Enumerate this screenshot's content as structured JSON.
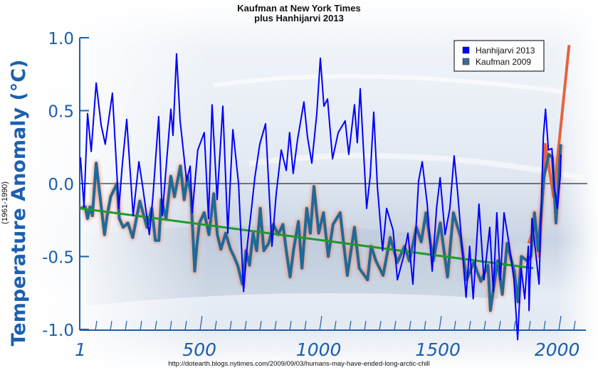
{
  "chart_data": {
    "type": "line",
    "title": "Kaufman at New York Times",
    "subtitle": "plus Hanhijarvi 2013",
    "xlabel": "",
    "ylabel": "Temperature Anomaly (°C)",
    "ylabel_sub": "(1961-1990)",
    "source_note": "http://dotearth.blogs.nytimes.com/2009/09/03/humans-may-have-ended-long-arctic-chill",
    "xlim": [
      1,
      2120
    ],
    "ylim": [
      -1.0,
      1.0
    ],
    "x_tick_labels": [
      "1",
      "500",
      "1000",
      "1500",
      "2000"
    ],
    "x_tick_values": [
      1,
      500,
      1000,
      1500,
      2000
    ],
    "y_tick_labels": [
      "1.0",
      "0.5",
      "0.0",
      "-0.5",
      "-1.0"
    ],
    "y_tick_values": [
      1.0,
      0.5,
      0.0,
      -0.5,
      -1.0
    ],
    "legend_position": "top-right",
    "reference_line": 0.0,
    "series": [
      {
        "name": "Hanhijarvi 2013",
        "color": "#0000ff",
        "x": [
          1,
          16,
          31,
          46,
          67,
          88,
          105,
          135,
          162,
          177,
          195,
          222,
          246,
          260,
          290,
          305,
          329,
          344,
          380,
          389,
          404,
          419,
          446,
          461,
          470,
          493,
          520,
          538,
          553,
          574,
          598,
          619,
          640,
          664,
          685,
          700,
          717,
          732,
          753,
          777,
          804,
          822,
          843,
          864,
          878,
          893,
          911,
          938,
          953,
          971,
          992,
          1007,
          1022,
          1037,
          1058,
          1082,
          1111,
          1126,
          1150,
          1162,
          1174,
          1201,
          1216,
          1231,
          1246,
          1268,
          1285,
          1312,
          1330,
          1356,
          1374,
          1395,
          1419,
          1434,
          1455,
          1476,
          1494,
          1509,
          1530,
          1550,
          1568,
          1583,
          1598,
          1618,
          1633,
          1648,
          1672,
          1693,
          1717,
          1732,
          1747,
          1762,
          1777,
          1798,
          1819,
          1834,
          1849,
          1864,
          1879,
          1882,
          1894,
          1909,
          1924,
          1933,
          1942,
          1951,
          1963,
          1978,
          1987,
          2001,
          2013,
          2016
        ],
        "y": [
          0.18,
          -0.16,
          0.48,
          0.22,
          0.69,
          0.4,
          0.27,
          0.62,
          -0.17,
          0.14,
          0.44,
          -0.22,
          0.15,
          0.0,
          -0.35,
          -0.09,
          0.46,
          -0.22,
          0.51,
          0.33,
          0.89,
          0.43,
          0.02,
          0.12,
          -0.2,
          0.23,
          0.35,
          -0.24,
          0.54,
          -0.11,
          0.53,
          -0.34,
          0.37,
          0.0,
          -0.74,
          -0.43,
          -0.19,
          0.04,
          0.27,
          0.41,
          -0.43,
          -0.07,
          0.23,
          0.09,
          0.35,
          0.07,
          0.3,
          0.56,
          0.32,
          0.14,
          0.48,
          0.86,
          0.53,
          0.58,
          0.17,
          0.35,
          0.43,
          0.2,
          0.54,
          0.28,
          0.65,
          -0.17,
          0.05,
          0.49,
          -0.02,
          -0.46,
          -0.17,
          -0.32,
          -0.66,
          -0.5,
          -0.34,
          -0.69,
          0.02,
          0.15,
          -0.14,
          -0.6,
          -0.17,
          0.04,
          -0.35,
          -0.17,
          0.19,
          -0.07,
          -0.37,
          -0.78,
          -0.43,
          -0.79,
          -0.14,
          -0.66,
          -0.3,
          -0.74,
          -0.2,
          -0.66,
          -0.2,
          -0.41,
          -0.66,
          -1.07,
          -0.58,
          -0.79,
          -0.43,
          -0.87,
          -0.24,
          -0.46,
          -0.69,
          -0.17,
          0.32,
          0.51,
          0.23,
          0.24,
          -0.01,
          -0.17,
          0.05,
          0.2
        ]
      },
      {
        "name": "Kaufman 2009",
        "color": "#1f6a97",
        "x": [
          1,
          21,
          31,
          41,
          51,
          67,
          82,
          102,
          113,
          128,
          154,
          164,
          180,
          200,
          220,
          250,
          280,
          300,
          315,
          330,
          340,
          360,
          380,
          395,
          420,
          436,
          450,
          464,
          480,
          490,
          500,
          520,
          540,
          560,
          575,
          590,
          610,
          630,
          645,
          660,
          680,
          695,
          710,
          725,
          740,
          755,
          770,
          790,
          810,
          830,
          850,
          865,
          880,
          895,
          915,
          930,
          950,
          965,
          980,
          1000,
          1020,
          1040,
          1060,
          1090,
          1120,
          1150,
          1170,
          1205,
          1220,
          1240,
          1270,
          1300,
          1330,
          1360,
          1380,
          1410,
          1430,
          1450,
          1480,
          1510,
          1540,
          1565,
          1595,
          1620,
          1650,
          1680,
          1710,
          1720,
          1750,
          1770,
          1790,
          1820,
          1835,
          1850,
          1875,
          1890,
          1905,
          1920,
          1945,
          1965,
          1980,
          1995,
          2015
        ],
        "y": [
          -0.17,
          -0.16,
          -0.24,
          -0.16,
          -0.22,
          0.14,
          -0.07,
          -0.35,
          -0.22,
          -0.09,
          0.0,
          -0.24,
          -0.3,
          -0.27,
          -0.37,
          -0.12,
          -0.3,
          -0.17,
          -0.39,
          -0.39,
          -0.11,
          -0.24,
          0.05,
          -0.09,
          0.12,
          -0.11,
          0.05,
          -0.07,
          -0.6,
          -0.41,
          -0.27,
          -0.2,
          -0.35,
          -0.07,
          -0.35,
          -0.45,
          -0.34,
          -0.45,
          -0.5,
          -0.56,
          -0.69,
          -0.46,
          -0.56,
          -0.34,
          -0.46,
          -0.17,
          -0.46,
          -0.41,
          -0.28,
          -0.35,
          -0.28,
          -0.47,
          -0.64,
          -0.45,
          -0.26,
          -0.58,
          -0.17,
          -0.34,
          -0.02,
          -0.34,
          -0.2,
          -0.5,
          -0.28,
          -0.2,
          -0.63,
          -0.3,
          -0.58,
          -0.66,
          -0.43,
          -0.53,
          -0.63,
          -0.37,
          -0.54,
          -0.43,
          -0.53,
          -0.3,
          -0.4,
          -0.2,
          -0.53,
          -0.27,
          -0.64,
          -0.2,
          -0.37,
          -0.66,
          -0.54,
          -0.67,
          -0.56,
          -0.87,
          -0.53,
          -0.76,
          -0.41,
          -0.6,
          -0.81,
          -0.5,
          -0.53,
          -0.5,
          -0.2,
          -0.46,
          0.05,
          0.2,
          0.18,
          -0.27,
          0.27
        ]
      },
      {
        "name": "Instrumental (unlabeled)",
        "color": "#e8623f",
        "x": [
          1880,
          1910,
          1925,
          1950,
          1985,
          2050
        ],
        "y": [
          -0.41,
          -0.28,
          -0.5,
          0.27,
          -0.09,
          0.95
        ]
      },
      {
        "name": "Trend (unlabeled)",
        "color": "#1f9a2a",
        "x": [
          1,
          1900
        ],
        "y": [
          -0.17,
          -0.58
        ]
      }
    ]
  }
}
